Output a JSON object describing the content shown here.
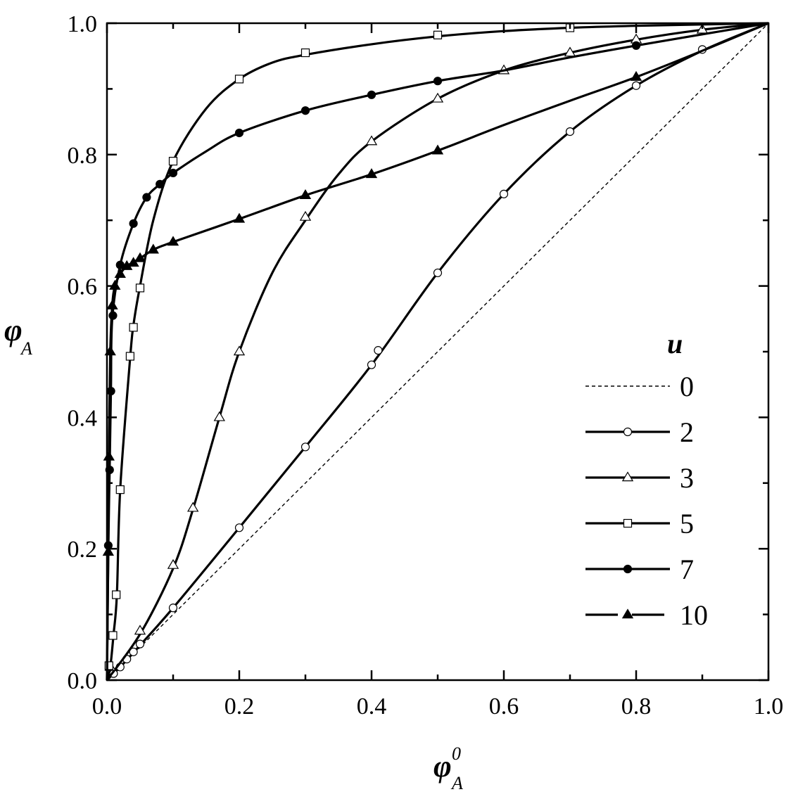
{
  "chart_data": {
    "type": "line",
    "title": "",
    "xlabel": {
      "main": "φ",
      "sub": "A",
      "sup": "0"
    },
    "ylabel": {
      "main": "φ",
      "sub": "A"
    },
    "xlim": [
      0,
      1
    ],
    "ylim": [
      0,
      1
    ],
    "xticks": [
      "0.0",
      "0.2",
      "0.4",
      "0.6",
      "0.8",
      "1.0"
    ],
    "yticks": [
      "0.0",
      "0.2",
      "0.4",
      "0.6",
      "0.8",
      "1.0"
    ],
    "grid": false,
    "legend": {
      "title": "u",
      "placement": "right"
    },
    "series": [
      {
        "name": "0",
        "marker": "none",
        "dash": "dashed",
        "curve": [
          [
            0,
            0
          ],
          [
            1,
            1
          ]
        ],
        "points": []
      },
      {
        "name": "2",
        "marker": "open-circle",
        "dash": "solid",
        "curve": [
          [
            0,
            0
          ],
          [
            0.02,
            0.02
          ],
          [
            0.05,
            0.053
          ],
          [
            0.1,
            0.11
          ],
          [
            0.2,
            0.232
          ],
          [
            0.3,
            0.355
          ],
          [
            0.4,
            0.48
          ],
          [
            0.5,
            0.62
          ],
          [
            0.6,
            0.74
          ],
          [
            0.7,
            0.835
          ],
          [
            0.8,
            0.905
          ],
          [
            0.9,
            0.958
          ],
          [
            1,
            1
          ]
        ],
        "points": [
          [
            0.01,
            0.01
          ],
          [
            0.02,
            0.02
          ],
          [
            0.03,
            0.032
          ],
          [
            0.04,
            0.043
          ],
          [
            0.05,
            0.055
          ],
          [
            0.1,
            0.11
          ],
          [
            0.2,
            0.232
          ],
          [
            0.3,
            0.355
          ],
          [
            0.4,
            0.48
          ],
          [
            0.41,
            0.502
          ],
          [
            0.5,
            0.62
          ],
          [
            0.6,
            0.74
          ],
          [
            0.7,
            0.835
          ],
          [
            0.8,
            0.905
          ],
          [
            0.9,
            0.96
          ]
        ]
      },
      {
        "name": "3",
        "marker": "open-triangle",
        "dash": "solid",
        "curve": [
          [
            0,
            0
          ],
          [
            0.05,
            0.07
          ],
          [
            0.1,
            0.17
          ],
          [
            0.13,
            0.26
          ],
          [
            0.17,
            0.4
          ],
          [
            0.2,
            0.5
          ],
          [
            0.25,
            0.62
          ],
          [
            0.3,
            0.7
          ],
          [
            0.35,
            0.77
          ],
          [
            0.4,
            0.82
          ],
          [
            0.5,
            0.885
          ],
          [
            0.6,
            0.928
          ],
          [
            0.7,
            0.955
          ],
          [
            0.8,
            0.975
          ],
          [
            0.9,
            0.99
          ],
          [
            1,
            1
          ]
        ],
        "points": [
          [
            0.005,
            0.02
          ],
          [
            0.05,
            0.075
          ],
          [
            0.1,
            0.175
          ],
          [
            0.13,
            0.262
          ],
          [
            0.17,
            0.4
          ],
          [
            0.2,
            0.5
          ],
          [
            0.3,
            0.705
          ],
          [
            0.4,
            0.82
          ],
          [
            0.5,
            0.885
          ],
          [
            0.6,
            0.928
          ],
          [
            0.7,
            0.955
          ],
          [
            0.8,
            0.975
          ],
          [
            0.9,
            0.99
          ]
        ]
      },
      {
        "name": "5",
        "marker": "open-square",
        "dash": "solid",
        "curve": [
          [
            0,
            0
          ],
          [
            0.005,
            0.02
          ],
          [
            0.01,
            0.07
          ],
          [
            0.015,
            0.13
          ],
          [
            0.02,
            0.29
          ],
          [
            0.035,
            0.49
          ],
          [
            0.04,
            0.54
          ],
          [
            0.05,
            0.6
          ],
          [
            0.07,
            0.7
          ],
          [
            0.1,
            0.79
          ],
          [
            0.15,
            0.87
          ],
          [
            0.2,
            0.915
          ],
          [
            0.25,
            0.94
          ],
          [
            0.3,
            0.952
          ],
          [
            0.4,
            0.968
          ],
          [
            0.5,
            0.98
          ],
          [
            0.6,
            0.988
          ],
          [
            0.7,
            0.993
          ],
          [
            0.8,
            0.996
          ],
          [
            1,
            1
          ]
        ],
        "points": [
          [
            0.003,
            0.022
          ],
          [
            0.009,
            0.068
          ],
          [
            0.014,
            0.13
          ],
          [
            0.02,
            0.29
          ],
          [
            0.035,
            0.493
          ],
          [
            0.04,
            0.537
          ],
          [
            0.05,
            0.597
          ],
          [
            0.1,
            0.79
          ],
          [
            0.2,
            0.915
          ],
          [
            0.3,
            0.955
          ],
          [
            0.5,
            0.982
          ],
          [
            0.7,
            0.993
          ]
        ]
      },
      {
        "name": "7",
        "marker": "filled-circle",
        "dash": "solid",
        "curve": [
          [
            0,
            0
          ],
          [
            0.002,
            0.2
          ],
          [
            0.004,
            0.32
          ],
          [
            0.006,
            0.44
          ],
          [
            0.008,
            0.55
          ],
          [
            0.02,
            0.632
          ],
          [
            0.04,
            0.695
          ],
          [
            0.06,
            0.735
          ],
          [
            0.08,
            0.755
          ],
          [
            0.1,
            0.772
          ],
          [
            0.15,
            0.805
          ],
          [
            0.2,
            0.833
          ],
          [
            0.3,
            0.867
          ],
          [
            0.4,
            0.891
          ],
          [
            0.5,
            0.912
          ],
          [
            0.6,
            0.928
          ],
          [
            0.7,
            0.948
          ],
          [
            0.8,
            0.966
          ],
          [
            1,
            1
          ]
        ],
        "points": [
          [
            0.002,
            0.205
          ],
          [
            0.004,
            0.32
          ],
          [
            0.006,
            0.44
          ],
          [
            0.009,
            0.555
          ],
          [
            0.02,
            0.632
          ],
          [
            0.04,
            0.695
          ],
          [
            0.06,
            0.735
          ],
          [
            0.08,
            0.755
          ],
          [
            0.1,
            0.772
          ],
          [
            0.2,
            0.833
          ],
          [
            0.3,
            0.867
          ],
          [
            0.4,
            0.891
          ],
          [
            0.5,
            0.912
          ],
          [
            0.8,
            0.966
          ]
        ]
      },
      {
        "name": "10",
        "marker": "filled-triangle",
        "dash": "long-dash",
        "curve": [
          [
            0,
            0
          ],
          [
            0.002,
            0.2
          ],
          [
            0.003,
            0.34
          ],
          [
            0.005,
            0.5
          ],
          [
            0.008,
            0.57
          ],
          [
            0.012,
            0.6
          ],
          [
            0.02,
            0.618
          ],
          [
            0.03,
            0.63
          ],
          [
            0.05,
            0.642
          ],
          [
            0.07,
            0.655
          ],
          [
            0.1,
            0.667
          ],
          [
            0.2,
            0.702
          ],
          [
            0.3,
            0.738
          ],
          [
            0.4,
            0.77
          ],
          [
            0.5,
            0.806
          ],
          [
            0.6,
            0.845
          ],
          [
            0.7,
            0.882
          ],
          [
            0.8,
            0.918
          ],
          [
            0.9,
            0.958
          ],
          [
            1,
            1
          ]
        ],
        "points": [
          [
            0.002,
            0.195
          ],
          [
            0.003,
            0.34
          ],
          [
            0.005,
            0.5
          ],
          [
            0.008,
            0.57
          ],
          [
            0.012,
            0.6
          ],
          [
            0.02,
            0.618
          ],
          [
            0.03,
            0.63
          ],
          [
            0.04,
            0.635
          ],
          [
            0.05,
            0.642
          ],
          [
            0.07,
            0.655
          ],
          [
            0.1,
            0.667
          ],
          [
            0.2,
            0.702
          ],
          [
            0.3,
            0.738
          ],
          [
            0.4,
            0.77
          ],
          [
            0.5,
            0.806
          ],
          [
            0.8,
            0.918
          ]
        ]
      }
    ]
  }
}
